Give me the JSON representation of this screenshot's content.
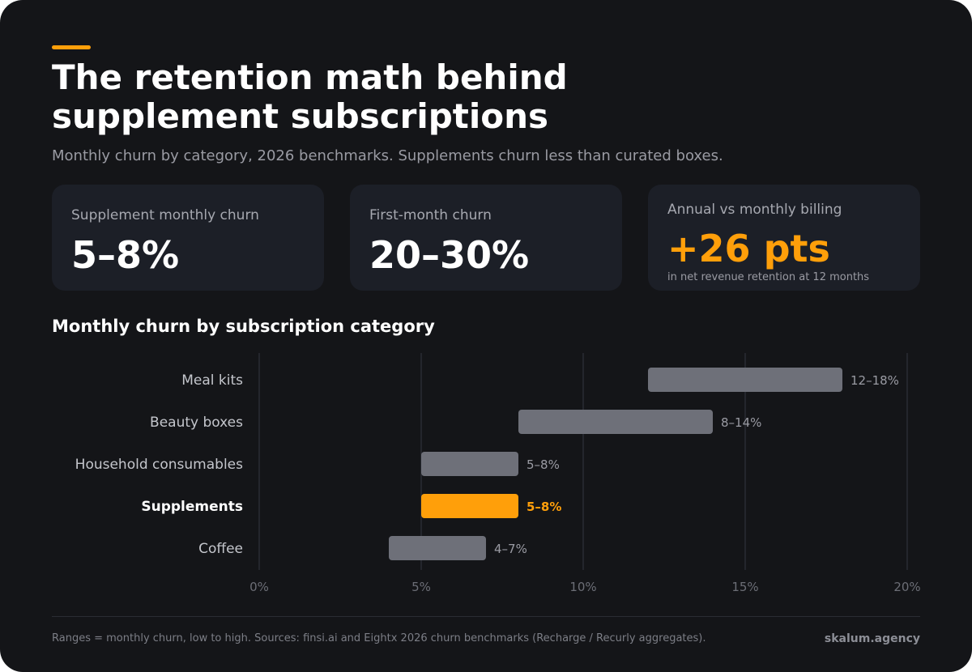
{
  "header": {
    "title": "The retention math behind supplement subscriptions",
    "subtitle": "Monthly churn by category, 2026 benchmarks. Supplements churn less than curated boxes."
  },
  "kpis": [
    {
      "label": "Supplement monthly churn",
      "value": "5–8%",
      "note": ""
    },
    {
      "label": "First-month churn",
      "value": "20–30%",
      "note": ""
    },
    {
      "label": "Annual vs monthly billing",
      "value": "+26 pts",
      "note": "in net revenue retention at 12 months"
    }
  ],
  "section_title": "Monthly churn by subscription category",
  "chart_data": {
    "type": "bar",
    "orientation": "horizontal",
    "categories": [
      "Meal kits",
      "Beauty boxes",
      "Household consumables",
      "Supplements",
      "Coffee"
    ],
    "ranges": [
      [
        12,
        18
      ],
      [
        8,
        14
      ],
      [
        5,
        8
      ],
      [
        5,
        8
      ],
      [
        4,
        7
      ]
    ],
    "data_labels": [
      "12–18%",
      "8–14%",
      "5–8%",
      "5–8%",
      "4–7%"
    ],
    "highlight": "Supplements",
    "xlim": [
      0,
      20
    ],
    "xticks": [
      0,
      5,
      10,
      15,
      20
    ],
    "xtick_labels": [
      "0%",
      "5%",
      "10%",
      "15%",
      "20%"
    ],
    "grid": true
  },
  "footer": {
    "note": "Ranges = monthly churn, low to high. Sources: finsi.ai and Eightx 2026 churn benchmarks (Recharge / Recurly aggregates).",
    "brand": "skalum.agency"
  },
  "colors": {
    "accent": "#ff9f0a",
    "bar": "#6e7079",
    "grid": "#2a2c33",
    "card": "#1c1f27",
    "background": "#141518"
  }
}
